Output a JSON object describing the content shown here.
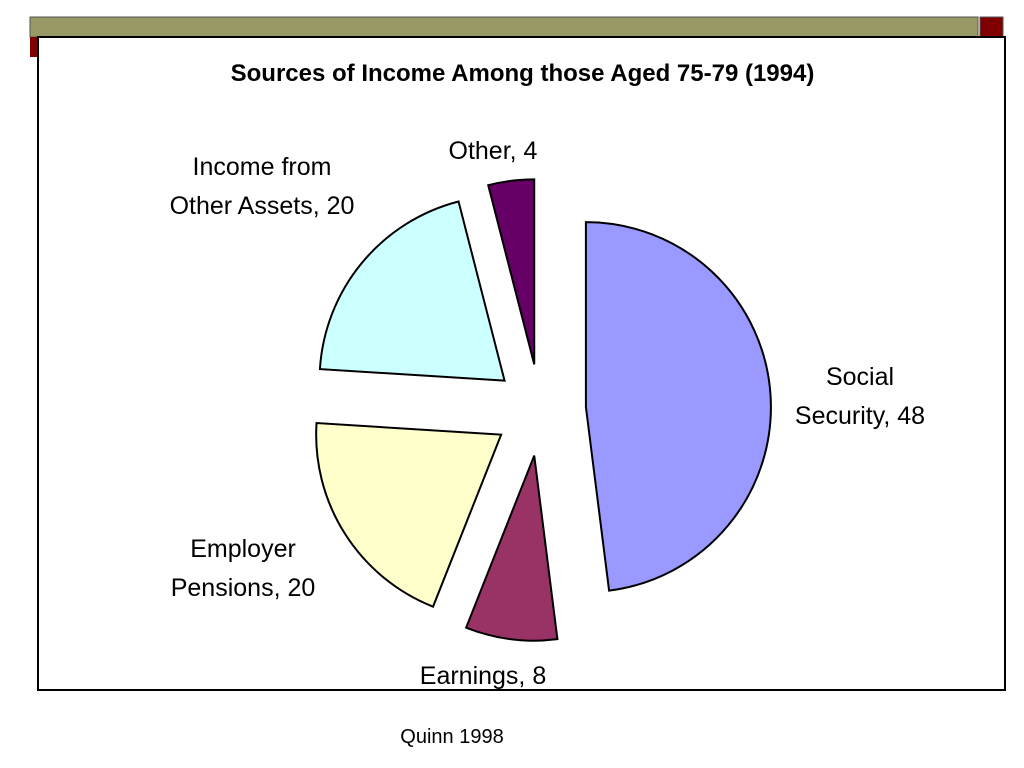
{
  "chart_data": {
    "type": "pie",
    "title": "Sources of Income Among those Aged 75-79 (1994)",
    "values": [
      48,
      8,
      20,
      20,
      4
    ],
    "value_labels": [
      "Social Security, 48",
      "Earnings, 8",
      "Employer Pensions, 20",
      "Income from Other Assets, 20",
      "Other, 4"
    ],
    "colors": [
      "#9999ff",
      "#993366",
      "#ffffcc",
      "#ccffff",
      "#660066"
    ],
    "source": "Quinn 1998"
  }
}
